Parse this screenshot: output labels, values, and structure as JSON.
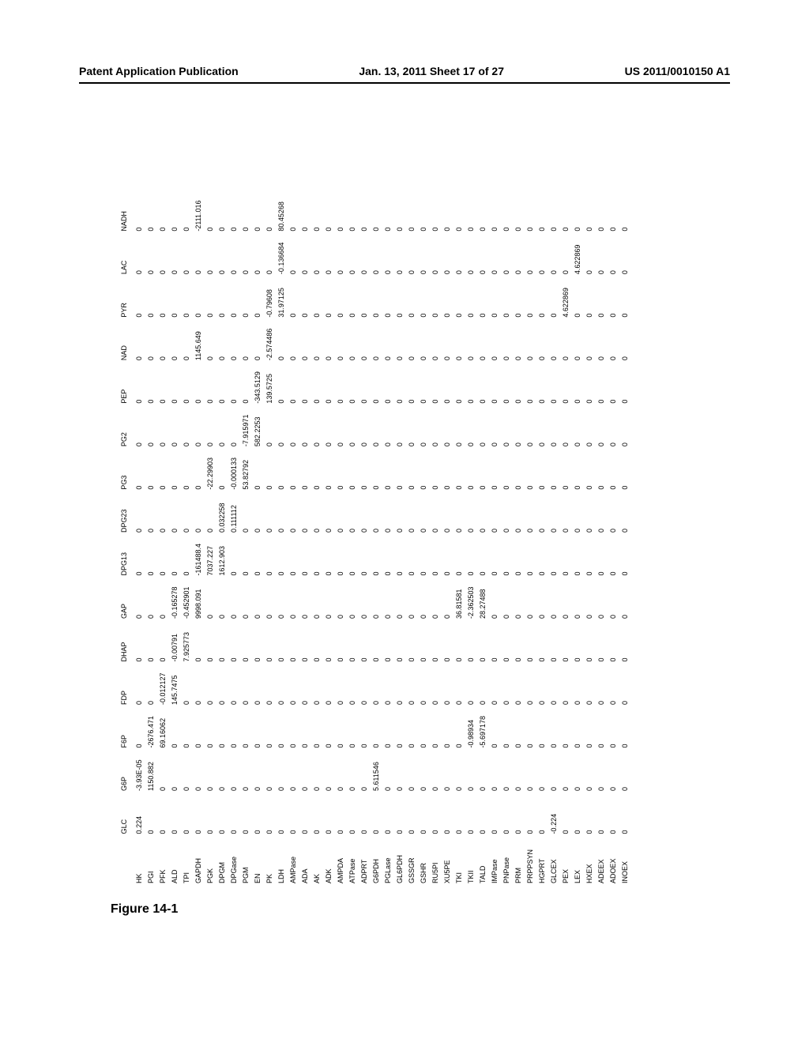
{
  "page_header": {
    "left": "Patent Application Publication",
    "center": "Jan. 13, 2011  Sheet 17 of 27",
    "right": "US 2011/0010150 A1"
  },
  "figure_label": "Figure 14-1",
  "table": {
    "font_size_pt": 7,
    "text_color": "#000000",
    "background_color": "#ffffff",
    "columns": [
      "GLC",
      "G6P",
      "F6P",
      "FDP",
      "DHAP",
      "GAP",
      "DPG13",
      "DPG23",
      "PG3",
      "PG2",
      "PEP",
      "NAD",
      "PYR",
      "LAC",
      "NADH"
    ],
    "row_labels": [
      "HK",
      "PGI",
      "PFK",
      "ALD",
      "TPI",
      "GAPDH",
      "PGK",
      "DPGM",
      "DPGase",
      "PGM",
      "EN",
      "PK",
      "LDH",
      "AMPase",
      "ADA",
      "AK",
      "ADK",
      "AMPDA",
      "ATPase",
      "ADPRT",
      "G6PDH",
      "PGLase",
      "GL6PDH",
      "GSSGR",
      "GSHR",
      "RU5PI",
      "XU5PE",
      "TKI",
      "TKII",
      "TALD",
      "IMPase",
      "PNPase",
      "PRM",
      "PRPPSYN",
      "HGPRT",
      "GLCEX",
      "PEX",
      "LEX",
      "HXEX",
      "ADEEX",
      "ADOEX",
      "INOEX"
    ],
    "data": {
      "HK": {
        "GLC": "0.224",
        "G6P": "-3.93E-05",
        "F6P": "0"
      },
      "PGI": {
        "G6P": "1150.882",
        "F6P": "-2676.471"
      },
      "PFK": {
        "F6P": "69.16062",
        "FDP": "-0.012127"
      },
      "ALD": {
        "FDP": "145.7475",
        "DHAP": "-0.00791",
        "GAP": "-0.165278"
      },
      "TPI": {
        "DHAP": "7.925773",
        "GAP": "-0.452901"
      },
      "GAPDH": {
        "GAP": "9998.091",
        "DPG13": "-161488.4",
        "NAD": "1145.649",
        "NADH": "-2111.016"
      },
      "PGK": {
        "DPG13": "7037.227",
        "PG3": "-22.29903"
      },
      "DPGM": {
        "DPG13": "1612.903",
        "DPG23": "0.032258"
      },
      "DPGase": {
        "DPG23": "0.111112",
        "PG3": "-0.000133"
      },
      "PGM": {
        "PG3": "53.82792",
        "PG2": "-7.915971"
      },
      "EN": {
        "PG2": "582.2253",
        "PEP": "-343.5129"
      },
      "PK": {
        "PEP": "139.5725",
        "PYR": "-0.79608",
        "NAD": "-2.574486"
      },
      "LDH": {
        "PYR": "31.97125",
        "LAC": "-0.136684",
        "NADH": "80.45268"
      },
      "AMPase": {},
      "ADA": {},
      "AK": {},
      "ADK": {},
      "AMPDA": {},
      "ATPase": {},
      "ADPRT": {},
      "G6PDH": {
        "G6P": "5.611546"
      },
      "PGLase": {},
      "GL6PDH": {},
      "GSSGR": {},
      "GSHR": {},
      "RU5PI": {},
      "XU5PE": {},
      "TKI": {
        "GAP": "36.81581"
      },
      "TKII": {
        "GAP": "-2.362503",
        "F6P": "-0.98934"
      },
      "TALD": {
        "GAP": "28.27488",
        "F6P": "-5.697178"
      },
      "IMPase": {},
      "PNPase": {},
      "PRM": {},
      "PRPPSYN": {},
      "HGPRT": {},
      "GLCEX": {
        "GLC": "-0.224"
      },
      "PEX": {
        "PYR": "4.622869"
      },
      "LEX": {
        "LAC": "4.622869"
      },
      "HXEX": {},
      "ADEEX": {},
      "ADOEX": {},
      "INOEX": {}
    }
  }
}
